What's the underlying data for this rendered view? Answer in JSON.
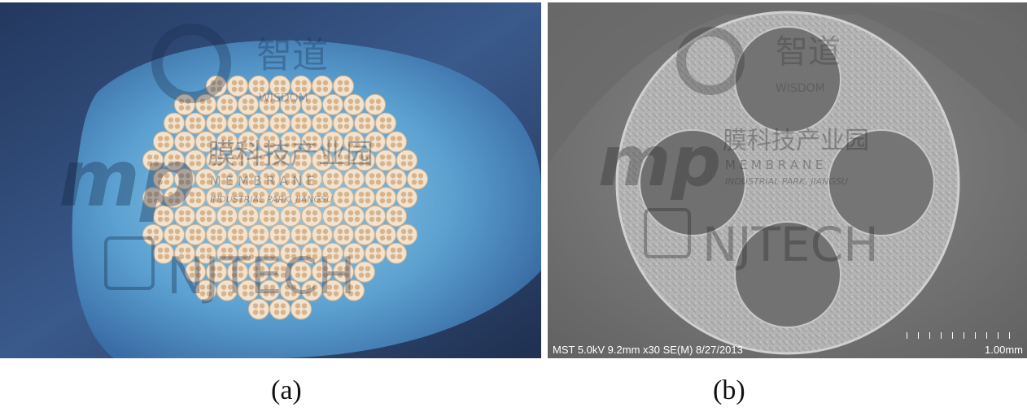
{
  "figure": {
    "panels": [
      {
        "caption": "(a)",
        "watermark": {
          "logo_cn": "智道",
          "logo_en": "WISDOM",
          "park_cn": "膜科技产业园",
          "park_en": "M E M B R A N E",
          "park_sub": "INDUSTRIAL PARK, JIANGSU",
          "university": "NJTECH"
        }
      },
      {
        "caption": "(b)",
        "sem_info": "MST 5.0kV 9.2mm x30 SE(M) 8/27/2013",
        "scale_bar_label": "1.00mm",
        "watermark": {
          "logo_cn": "智道",
          "logo_en": "WISDOM",
          "park_cn": "膜科技产业园",
          "park_en": "M E M B R A N E",
          "park_sub": "INDUSTRIAL PARK, JIANGSU",
          "university": "NJTECH"
        }
      }
    ]
  },
  "colors": {
    "photo_background": "#2e4a7a",
    "glove": "#5fa8d8",
    "tube": "#f1e3cf",
    "tube_shadow": "#d8b48c",
    "sem_background": "#7a7a7a",
    "sem_ring": "#b8b8b8"
  }
}
